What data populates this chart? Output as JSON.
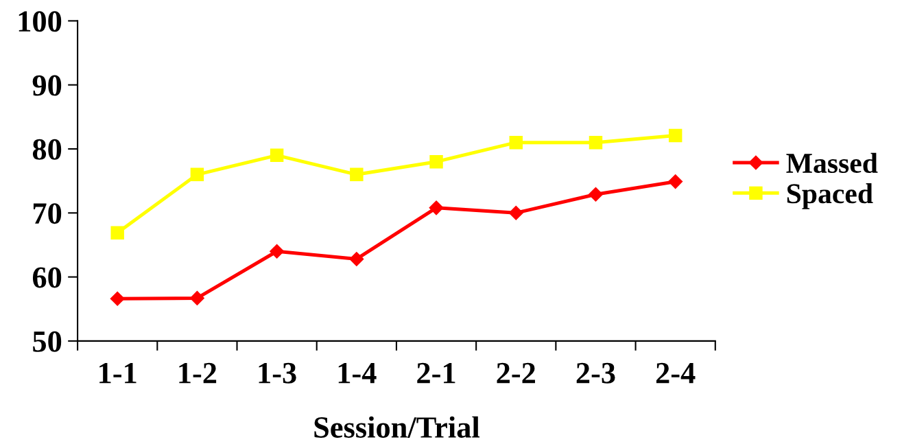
{
  "chart_data": {
    "type": "line",
    "xlabel": "Session/Trial",
    "categories": [
      "1-1",
      "1-2",
      "1-3",
      "1-4",
      "2-1",
      "2-2",
      "2-3",
      "2-4"
    ],
    "series": [
      {
        "name": "Massed",
        "color": "#ff0000",
        "marker": "diamond",
        "values": [
          56.6,
          56.7,
          64.0,
          62.8,
          70.8,
          70.0,
          72.9,
          74.9
        ]
      },
      {
        "name": "Spaced",
        "color": "#ffff00",
        "marker": "square",
        "values": [
          66.9,
          76.0,
          79.0,
          76.0,
          78.0,
          81.0,
          81.0,
          82.1
        ]
      }
    ],
    "ylim": [
      50,
      100
    ],
    "yticks": [
      50,
      60,
      70,
      80,
      90,
      100
    ],
    "legend": "right",
    "line_style": "solid"
  }
}
